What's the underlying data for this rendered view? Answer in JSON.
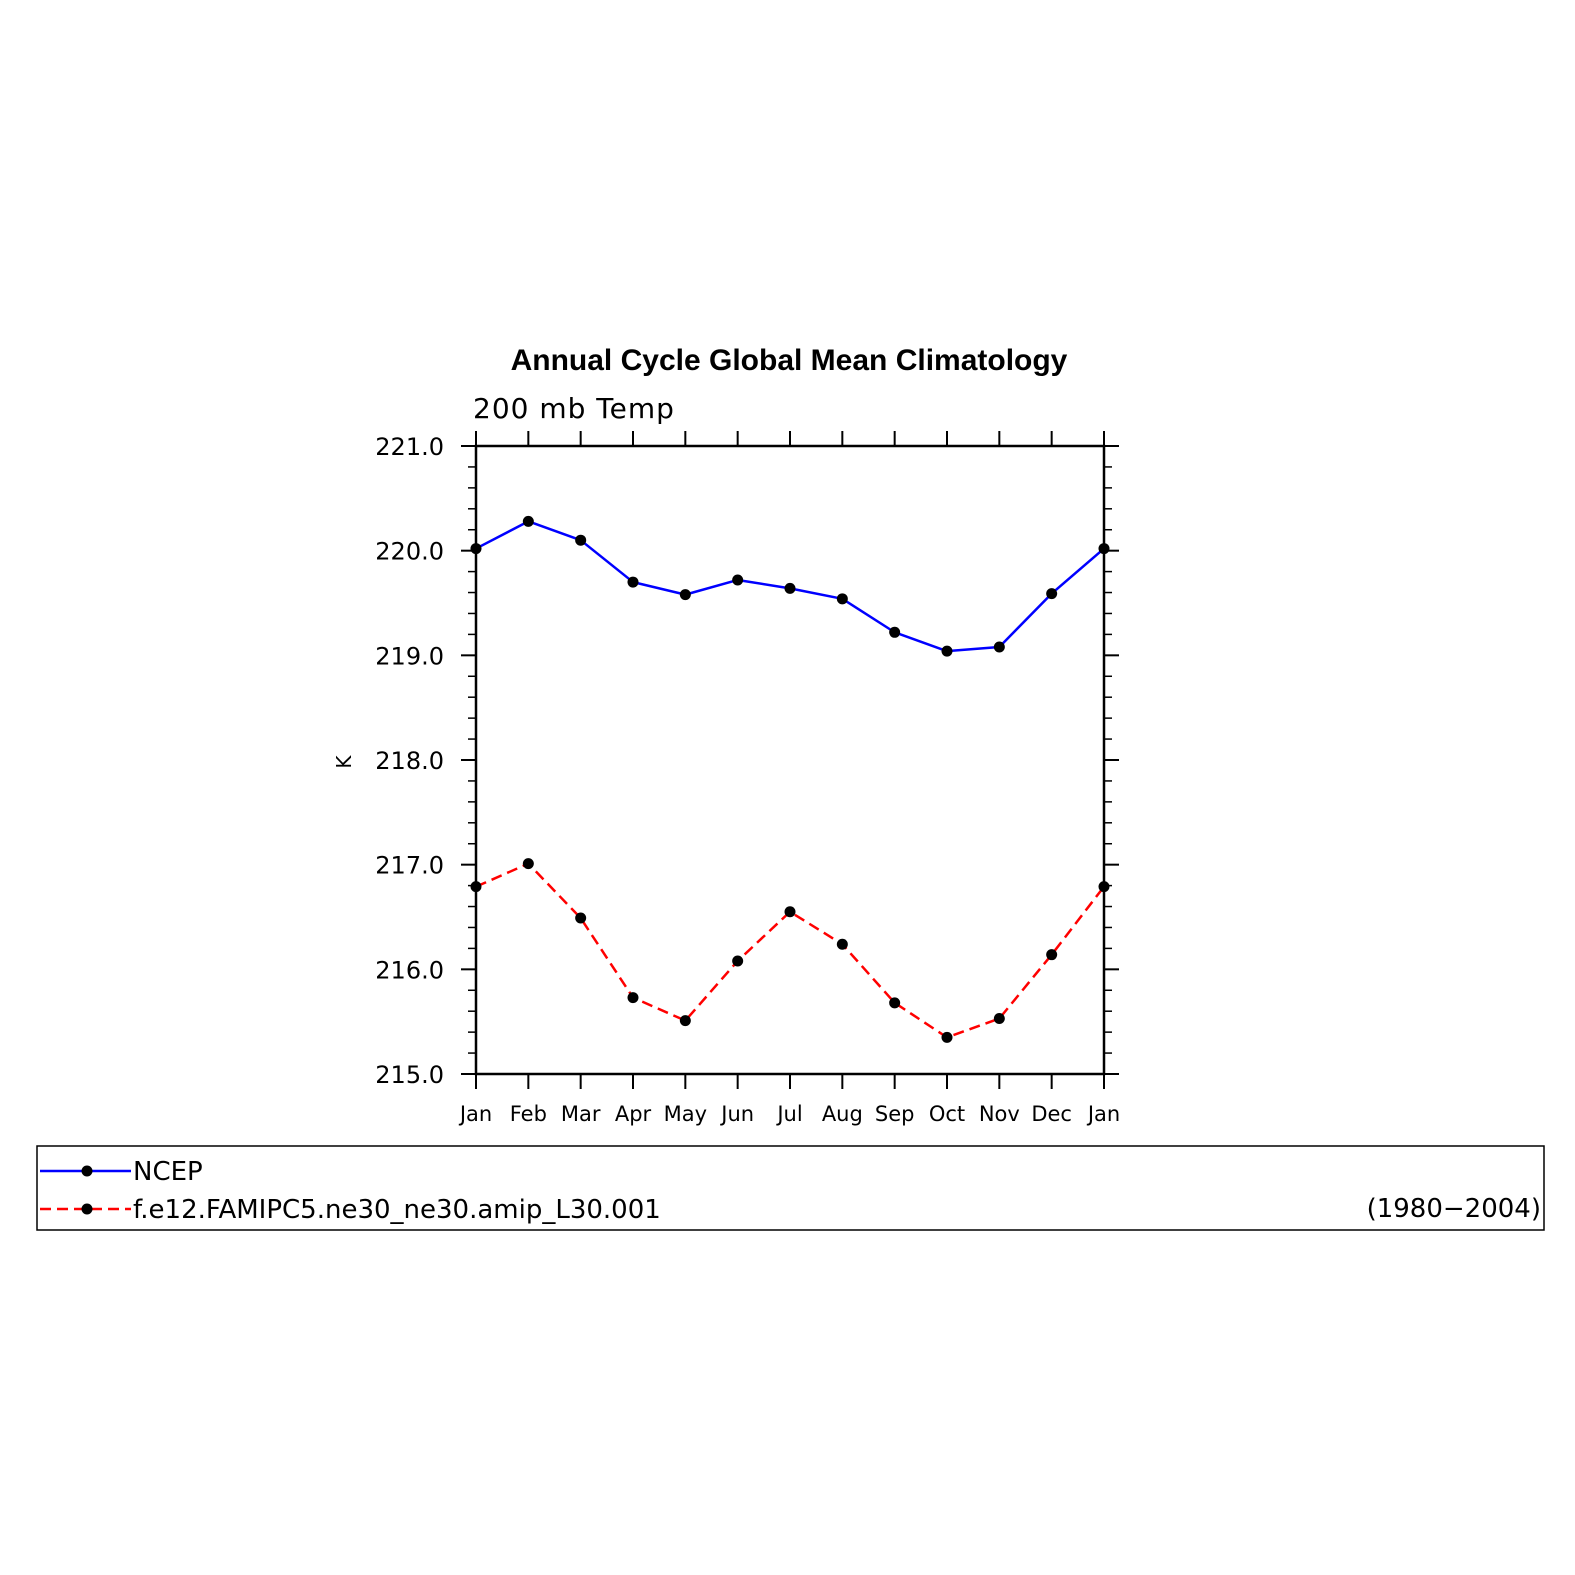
{
  "chart_data": {
    "type": "line",
    "title": "Annual Cycle Global Mean Climatology",
    "subtitle": "200 mb Temp",
    "xlabel": "",
    "ylabel": "K",
    "categories": [
      "Jan",
      "Feb",
      "Mar",
      "Apr",
      "May",
      "Jun",
      "Jul",
      "Aug",
      "Sep",
      "Oct",
      "Nov",
      "Dec",
      "Jan"
    ],
    "ylim": [
      215.0,
      221.0
    ],
    "yticks": [
      "215.0",
      "216.0",
      "217.0",
      "218.0",
      "219.0",
      "220.0",
      "221.0"
    ],
    "grid": false,
    "legend_position": "bottom",
    "series": [
      {
        "name": "NCEP",
        "color": "#0000ff",
        "dash": "solid",
        "marker": "circle",
        "values": [
          220.02,
          220.28,
          220.1,
          219.7,
          219.58,
          219.72,
          219.64,
          219.54,
          219.22,
          219.04,
          219.08,
          219.59,
          220.02
        ]
      },
      {
        "name": "f.e12.FAMIPC5.ne30_ne30.amip_L30.001",
        "color": "#ff0000",
        "dash": "dashed",
        "marker": "circle",
        "values": [
          216.79,
          217.01,
          216.49,
          215.73,
          215.51,
          216.08,
          216.55,
          216.24,
          215.68,
          215.35,
          215.53,
          216.14,
          216.79
        ]
      }
    ],
    "legend_note": "(1980−2004)"
  }
}
